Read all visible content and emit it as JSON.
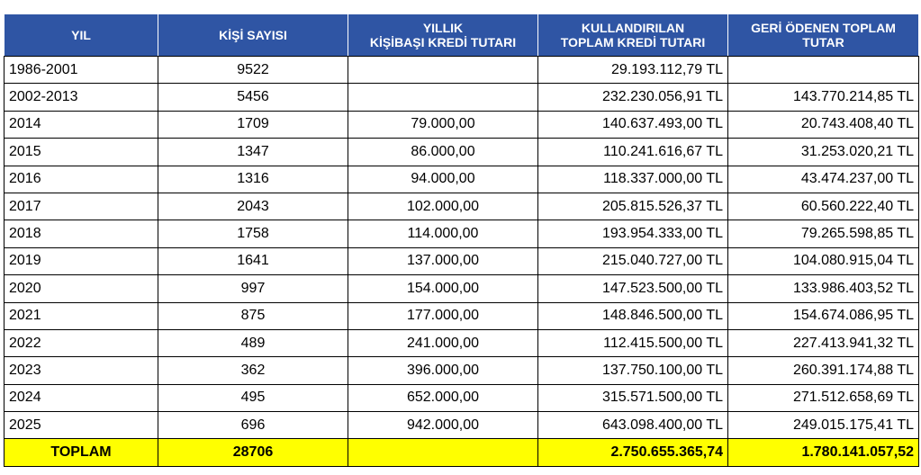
{
  "colors": {
    "header_bg": "#2F55A4",
    "header_text": "#FFFFFF",
    "total_bg": "#FFFF00"
  },
  "headers": [
    [
      "YIL",
      ""
    ],
    [
      "KİŞİ SAYISI",
      ""
    ],
    [
      "YILLIK",
      "KİŞİBAŞI KREDİ TUTARI"
    ],
    [
      "KULLANDIRILAN",
      "TOPLAM KREDİ TUTARI"
    ],
    [
      "GERİ ÖDENEN TOPLAM",
      "TUTAR"
    ]
  ],
  "rows": [
    [
      "1986-2001",
      "9522",
      "",
      "29.193.112,79 TL",
      ""
    ],
    [
      "2002-2013",
      "5456",
      "",
      "232.230.056,91 TL",
      "143.770.214,85 TL"
    ],
    [
      "2014",
      "1709",
      "79.000,00",
      "140.637.493,00 TL",
      "20.743.408,40 TL"
    ],
    [
      "2015",
      "1347",
      "86.000,00",
      "110.241.616,67 TL",
      "31.253.020,21 TL"
    ],
    [
      "2016",
      "1316",
      "94.000,00",
      "118.337.000,00 TL",
      "43.474.237,00 TL"
    ],
    [
      "2017",
      "2043",
      "102.000,00",
      "205.815.526,37 TL",
      "60.560.222,40 TL"
    ],
    [
      "2018",
      "1758",
      "114.000,00",
      "193.954.333,00 TL",
      "79.265.598,85 TL"
    ],
    [
      "2019",
      "1641",
      "137.000,00",
      "215.040.727,00 TL",
      "104.080.915,04 TL"
    ],
    [
      "2020",
      "997",
      "154.000,00",
      "147.523.500,00 TL",
      "133.986.403,52 TL"
    ],
    [
      "2021",
      "875",
      "177.000,00",
      "148.846.500,00 TL",
      "154.674.086,95 TL"
    ],
    [
      "2022",
      "489",
      "241.000,00",
      "112.415.500,00 TL",
      "227.413.941,32 TL"
    ],
    [
      "2023",
      "362",
      "396.000,00",
      "137.750.100,00 TL",
      "260.391.174,88 TL"
    ],
    [
      "2024",
      "495",
      "652.000,00",
      "315.571.500,00 TL",
      "271.512.658,69 TL"
    ],
    [
      "2025",
      "696",
      "942.000,00",
      "643.098.400,00 TL",
      "249.015.175,41 TL"
    ]
  ],
  "total": [
    "TOPLAM",
    "28706",
    "",
    "2.750.655.365,74",
    "1.780.141.057,52"
  ]
}
